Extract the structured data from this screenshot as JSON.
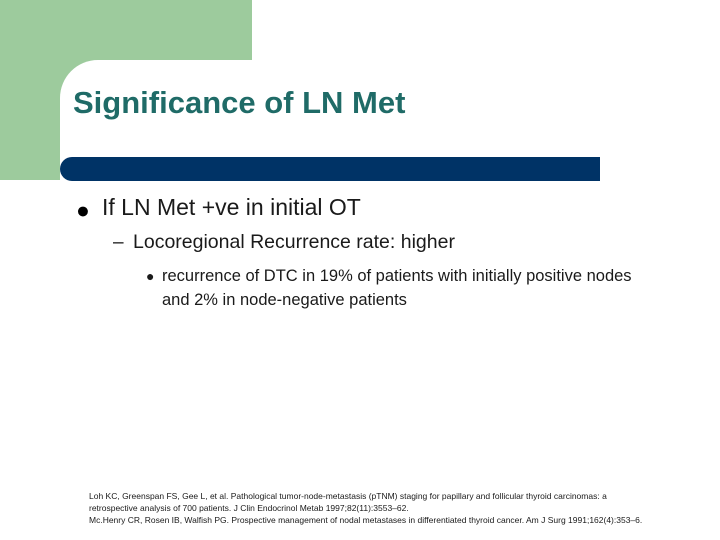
{
  "slide": {
    "title": "Significance of LN Met",
    "bullets": [
      {
        "marker": "●",
        "text": "If LN Met +ve in initial OT",
        "sub": [
          {
            "marker": "–",
            "text": "Locoregional Recurrence rate: higher",
            "sub": [
              {
                "marker": "●",
                "text": "recurrence of DTC in 19% of patients with initially positive nodes and 2% in node-negative patients"
              }
            ]
          }
        ]
      }
    ],
    "references": [
      "Loh KC, Greenspan FS, Gee L, et al. Pathological tumor-node-metastasis (pTNM) staging for papillary and follicular thyroid carcinomas: a retrospective analysis of 700 patients. J Clin Endocrinol Metab 1997;82(11):3553–62.",
      "Mc.Henry CR, Rosen IB, Walfish PG. Prospective management of nodal metastases in differentiated thyroid cancer. Am J Surg 1991;162(4):353–6."
    ]
  },
  "colors": {
    "accent_green": "#9dcb9d",
    "title_text": "#1f6b67",
    "title_bar": "#003366"
  }
}
